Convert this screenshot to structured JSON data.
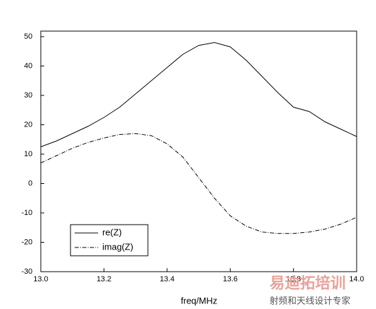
{
  "chart_data": {
    "type": "line",
    "x_label": "freq/MHz",
    "x": [
      13.0,
      13.05,
      13.1,
      13.15,
      13.2,
      13.25,
      13.3,
      13.35,
      13.4,
      13.45,
      13.5,
      13.55,
      13.6,
      13.65,
      13.7,
      13.75,
      13.8,
      13.85,
      13.9,
      13.95,
      14.0
    ],
    "series": [
      {
        "name": "re(Z)",
        "color": "#000000",
        "style": "solid",
        "values": [
          12.5,
          14.5,
          17,
          19.5,
          22.5,
          26,
          30.5,
          35,
          39.5,
          44,
          47,
          48,
          46.5,
          42,
          36.5,
          31,
          26,
          24.5,
          21,
          18.5,
          16
        ]
      },
      {
        "name": "imag(Z)",
        "color": "#000000",
        "style": "dashdot",
        "values": [
          7,
          9.5,
          12,
          14,
          15.5,
          16.7,
          17,
          16.3,
          13.5,
          9,
          2,
          -5,
          -11,
          -14.5,
          -16.5,
          -17,
          -17,
          -16.5,
          -15.5,
          -13.8,
          -11.5
        ]
      }
    ],
    "xlim": [
      13.0,
      14.0
    ],
    "xticks": [
      {
        "value": 13.0,
        "label": "13.0"
      },
      {
        "value": 13.2,
        "label": "13.2"
      },
      {
        "value": 13.4,
        "label": "13.4"
      },
      {
        "value": 13.6,
        "label": "13.6"
      },
      {
        "value": 13.8,
        "label": "13.8"
      },
      {
        "value": 14.0,
        "label": "14.0"
      }
    ],
    "ylim": [
      -30,
      50
    ],
    "yticks": [
      -30,
      -20,
      -10,
      0,
      10,
      20,
      30,
      40,
      50
    ],
    "legend": "lower left",
    "watermark": [
      "易迪拓培训",
      "射频和天线设计专家"
    ]
  }
}
